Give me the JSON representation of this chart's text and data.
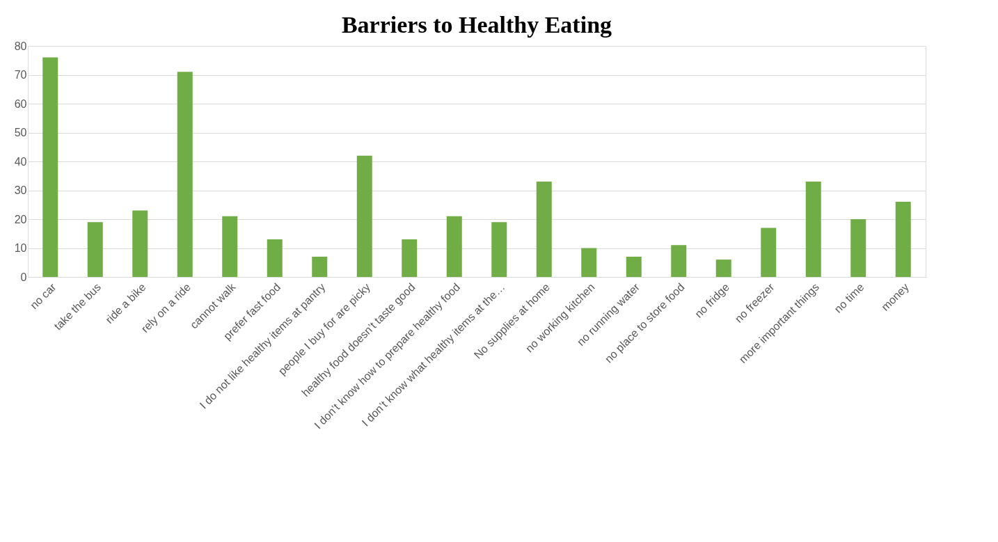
{
  "chart_data": {
    "type": "bar",
    "title": "Barriers to Healthy Eating",
    "categories": [
      "no car",
      "take the bus",
      "ride a bike",
      "rely on a ride",
      "cannot walk",
      "prefer fast food",
      "I do not like healthy items at pantry",
      "people I buy for are picky",
      "healthy food doesn’t taste good",
      "I don’t know how to prepare healthy food",
      "I don’t know what healthy items at the…",
      "No supplies at home",
      "no working kitchen",
      "no running water",
      "no place to store food",
      "no fridge",
      "no freezer",
      "more important things",
      "no time",
      "money"
    ],
    "values": [
      76,
      19,
      23,
      71,
      21,
      13,
      7,
      42,
      13,
      21,
      19,
      33,
      10,
      7,
      11,
      6,
      17,
      33,
      20,
      26
    ],
    "color": "#70ad47",
    "ylim": [
      0,
      80
    ],
    "yticks": [
      0,
      10,
      20,
      30,
      40,
      50,
      60,
      70,
      80
    ],
    "grid": "y"
  }
}
